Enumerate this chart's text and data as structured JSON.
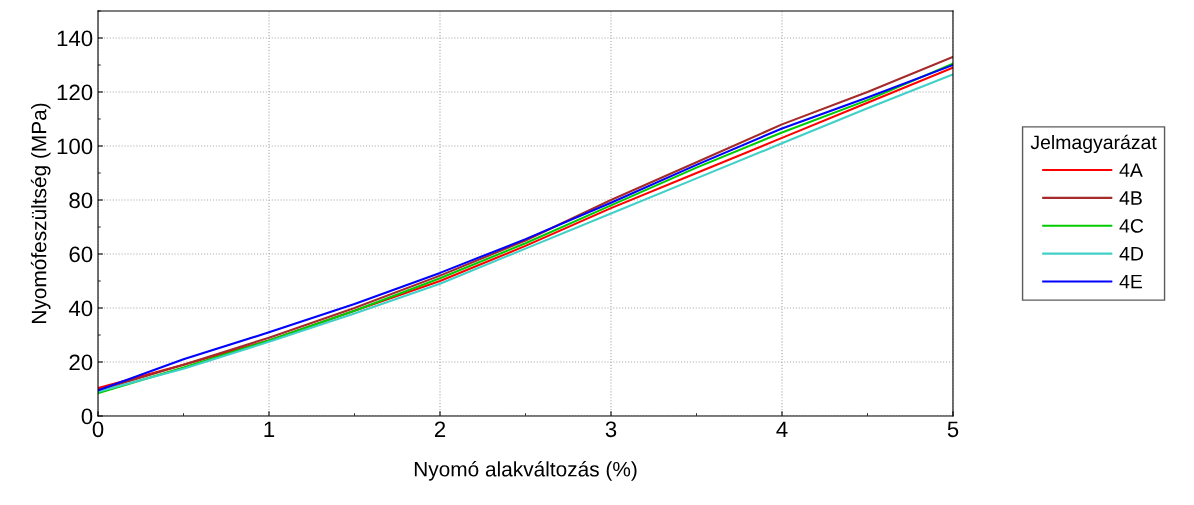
{
  "chart_data": {
    "type": "line",
    "xlabel": "Nyomó alakváltozás (%)",
    "ylabel": "Nyomófeszültség (MPa)",
    "legend_title": "Jelmagyarázat",
    "legend": "right",
    "x": [
      0,
      0.5,
      1,
      1.5,
      2,
      2.5,
      3,
      3.5,
      4,
      4.5,
      5
    ],
    "series": [
      {
        "name": "4A",
        "color": "#ff0000",
        "values": [
          10.3,
          19,
          28,
          39,
          50,
          63,
          77,
          90,
          103,
          116,
          129
        ]
      },
      {
        "name": "4B",
        "color": "#a52a2a",
        "values": [
          9.5,
          19,
          29,
          40,
          52,
          65,
          80,
          94,
          108,
          120,
          133
        ]
      },
      {
        "name": "4C",
        "color": "#00cc00",
        "values": [
          8.5,
          18,
          28,
          39,
          51,
          64,
          78,
          92,
          105,
          117,
          130.5
        ]
      },
      {
        "name": "4D",
        "color": "#40d0c8",
        "values": [
          9,
          17.5,
          27.5,
          38,
          49,
          62,
          75,
          88,
          101,
          114,
          126.5
        ]
      },
      {
        "name": "4E",
        "color": "#0000ff",
        "values": [
          9.5,
          21,
          31,
          41.5,
          53,
          65.5,
          79,
          93,
          106.5,
          118,
          130
        ]
      }
    ],
    "xlim": [
      0,
      5
    ],
    "xticks": [
      0,
      1,
      2,
      3,
      4,
      5
    ],
    "ylim": [
      0,
      150
    ],
    "yticks": [
      0,
      20,
      40,
      60,
      80,
      100,
      120,
      140
    ],
    "grid": true,
    "line_style": "solid",
    "marker": "none"
  }
}
